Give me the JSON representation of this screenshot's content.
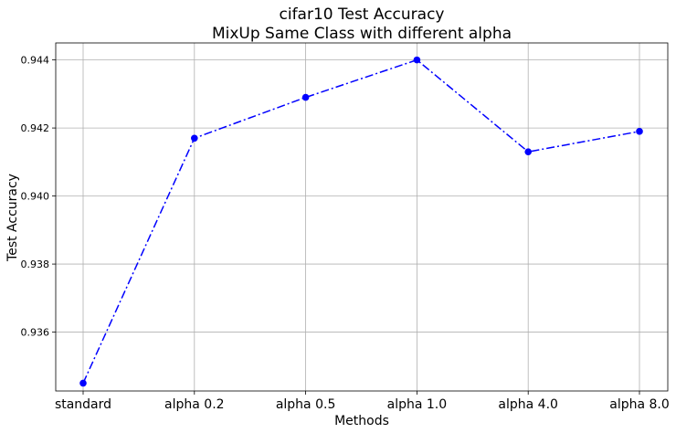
{
  "chart_data": {
    "type": "line",
    "title": "cifar10 Test Accuracy",
    "subtitle": "MixUp Same Class with different alpha",
    "xlabel": "Methods",
    "ylabel": "Test Accuracy",
    "categories": [
      "standard",
      "alpha 0.2",
      "alpha 0.5",
      "alpha 1.0",
      "alpha 4.0",
      "alpha 8.0"
    ],
    "series": [
      {
        "values": [
          0.9345,
          0.9417,
          0.9429,
          0.944,
          0.9413,
          0.9419
        ],
        "color": "#0000ff",
        "line_style": "dash-dot",
        "marker": "circle"
      }
    ],
    "ylim": [
      0.93427,
      0.9445
    ],
    "yticks": [
      0.936,
      0.938,
      0.94,
      0.942,
      0.944
    ],
    "ytick_labels": [
      "0.936",
      "0.938",
      "0.940",
      "0.942",
      "0.944"
    ],
    "grid": true,
    "legend": false
  }
}
